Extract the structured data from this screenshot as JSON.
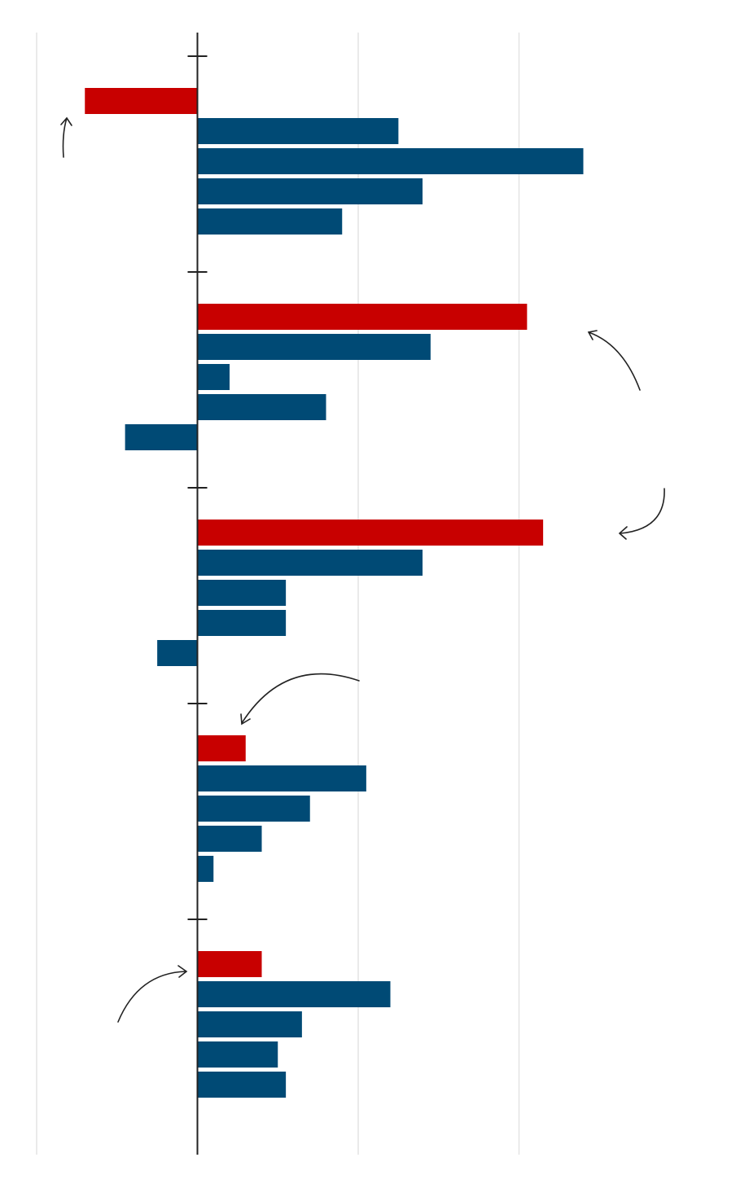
{
  "chart_data": {
    "type": "bar",
    "orientation": "horizontal",
    "categories": [
      null,
      null,
      null,
      null,
      null
    ],
    "series": [
      {
        "color": "#c80000",
        "values": [
          -0.7,
          2.05,
          2.15,
          0.3,
          0.4
        ]
      },
      {
        "color": "#004a75",
        "values": [
          1.25,
          1.45,
          1.4,
          1.05,
          1.2
        ]
      },
      {
        "color": "#004a75",
        "values": [
          2.4,
          0.2,
          0.55,
          0.7,
          0.65
        ]
      },
      {
        "color": "#004a75",
        "values": [
          1.4,
          0.8,
          0.55,
          0.4,
          0.5
        ]
      },
      {
        "color": "#004a75",
        "values": [
          0.9,
          -0.45,
          -0.25,
          0.1,
          0.55
        ]
      }
    ],
    "xlim": [
      -1,
      3
    ],
    "xticks": [
      -1,
      0,
      1,
      2
    ],
    "grid": true
  }
}
